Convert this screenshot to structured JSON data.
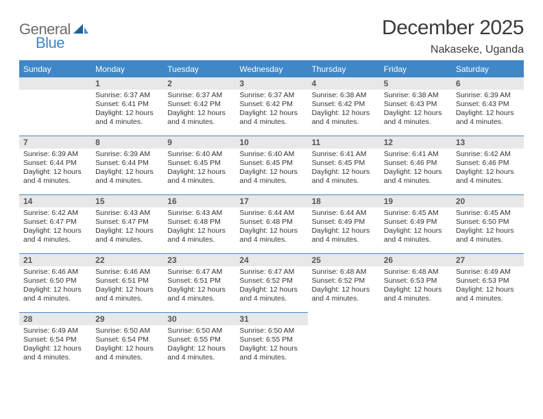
{
  "logo": {
    "gray": "General",
    "blue": "Blue"
  },
  "title": "December 2025",
  "subtitle": "Nakaseke, Uganda",
  "accent_color": "#3f87c7",
  "header_bg": "#3f87c7",
  "daynum_bg": "#e8e8e8",
  "background_color": "#ffffff",
  "text_color": "#333333",
  "font_family": "Arial",
  "day_headers": [
    "Sunday",
    "Monday",
    "Tuesday",
    "Wednesday",
    "Thursday",
    "Friday",
    "Saturday"
  ],
  "first_weekday_index": 1,
  "days_in_month": 31,
  "days": {
    "1": {
      "sunrise": "6:37 AM",
      "sunset": "6:41 PM",
      "daylight": "12 hours and 4 minutes."
    },
    "2": {
      "sunrise": "6:37 AM",
      "sunset": "6:42 PM",
      "daylight": "12 hours and 4 minutes."
    },
    "3": {
      "sunrise": "6:37 AM",
      "sunset": "6:42 PM",
      "daylight": "12 hours and 4 minutes."
    },
    "4": {
      "sunrise": "6:38 AM",
      "sunset": "6:42 PM",
      "daylight": "12 hours and 4 minutes."
    },
    "5": {
      "sunrise": "6:38 AM",
      "sunset": "6:43 PM",
      "daylight": "12 hours and 4 minutes."
    },
    "6": {
      "sunrise": "6:39 AM",
      "sunset": "6:43 PM",
      "daylight": "12 hours and 4 minutes."
    },
    "7": {
      "sunrise": "6:39 AM",
      "sunset": "6:44 PM",
      "daylight": "12 hours and 4 minutes."
    },
    "8": {
      "sunrise": "6:39 AM",
      "sunset": "6:44 PM",
      "daylight": "12 hours and 4 minutes."
    },
    "9": {
      "sunrise": "6:40 AM",
      "sunset": "6:45 PM",
      "daylight": "12 hours and 4 minutes."
    },
    "10": {
      "sunrise": "6:40 AM",
      "sunset": "6:45 PM",
      "daylight": "12 hours and 4 minutes."
    },
    "11": {
      "sunrise": "6:41 AM",
      "sunset": "6:45 PM",
      "daylight": "12 hours and 4 minutes."
    },
    "12": {
      "sunrise": "6:41 AM",
      "sunset": "6:46 PM",
      "daylight": "12 hours and 4 minutes."
    },
    "13": {
      "sunrise": "6:42 AM",
      "sunset": "6:46 PM",
      "daylight": "12 hours and 4 minutes."
    },
    "14": {
      "sunrise": "6:42 AM",
      "sunset": "6:47 PM",
      "daylight": "12 hours and 4 minutes."
    },
    "15": {
      "sunrise": "6:43 AM",
      "sunset": "6:47 PM",
      "daylight": "12 hours and 4 minutes."
    },
    "16": {
      "sunrise": "6:43 AM",
      "sunset": "6:48 PM",
      "daylight": "12 hours and 4 minutes."
    },
    "17": {
      "sunrise": "6:44 AM",
      "sunset": "6:48 PM",
      "daylight": "12 hours and 4 minutes."
    },
    "18": {
      "sunrise": "6:44 AM",
      "sunset": "6:49 PM",
      "daylight": "12 hours and 4 minutes."
    },
    "19": {
      "sunrise": "6:45 AM",
      "sunset": "6:49 PM",
      "daylight": "12 hours and 4 minutes."
    },
    "20": {
      "sunrise": "6:45 AM",
      "sunset": "6:50 PM",
      "daylight": "12 hours and 4 minutes."
    },
    "21": {
      "sunrise": "6:46 AM",
      "sunset": "6:50 PM",
      "daylight": "12 hours and 4 minutes."
    },
    "22": {
      "sunrise": "6:46 AM",
      "sunset": "6:51 PM",
      "daylight": "12 hours and 4 minutes."
    },
    "23": {
      "sunrise": "6:47 AM",
      "sunset": "6:51 PM",
      "daylight": "12 hours and 4 minutes."
    },
    "24": {
      "sunrise": "6:47 AM",
      "sunset": "6:52 PM",
      "daylight": "12 hours and 4 minutes."
    },
    "25": {
      "sunrise": "6:48 AM",
      "sunset": "6:52 PM",
      "daylight": "12 hours and 4 minutes."
    },
    "26": {
      "sunrise": "6:48 AM",
      "sunset": "6:53 PM",
      "daylight": "12 hours and 4 minutes."
    },
    "27": {
      "sunrise": "6:49 AM",
      "sunset": "6:53 PM",
      "daylight": "12 hours and 4 minutes."
    },
    "28": {
      "sunrise": "6:49 AM",
      "sunset": "6:54 PM",
      "daylight": "12 hours and 4 minutes."
    },
    "29": {
      "sunrise": "6:50 AM",
      "sunset": "6:54 PM",
      "daylight": "12 hours and 4 minutes."
    },
    "30": {
      "sunrise": "6:50 AM",
      "sunset": "6:55 PM",
      "daylight": "12 hours and 4 minutes."
    },
    "31": {
      "sunrise": "6:50 AM",
      "sunset": "6:55 PM",
      "daylight": "12 hours and 4 minutes."
    }
  },
  "labels": {
    "sunrise_prefix": "Sunrise: ",
    "sunset_prefix": "Sunset: ",
    "daylight_prefix": "Daylight: "
  }
}
